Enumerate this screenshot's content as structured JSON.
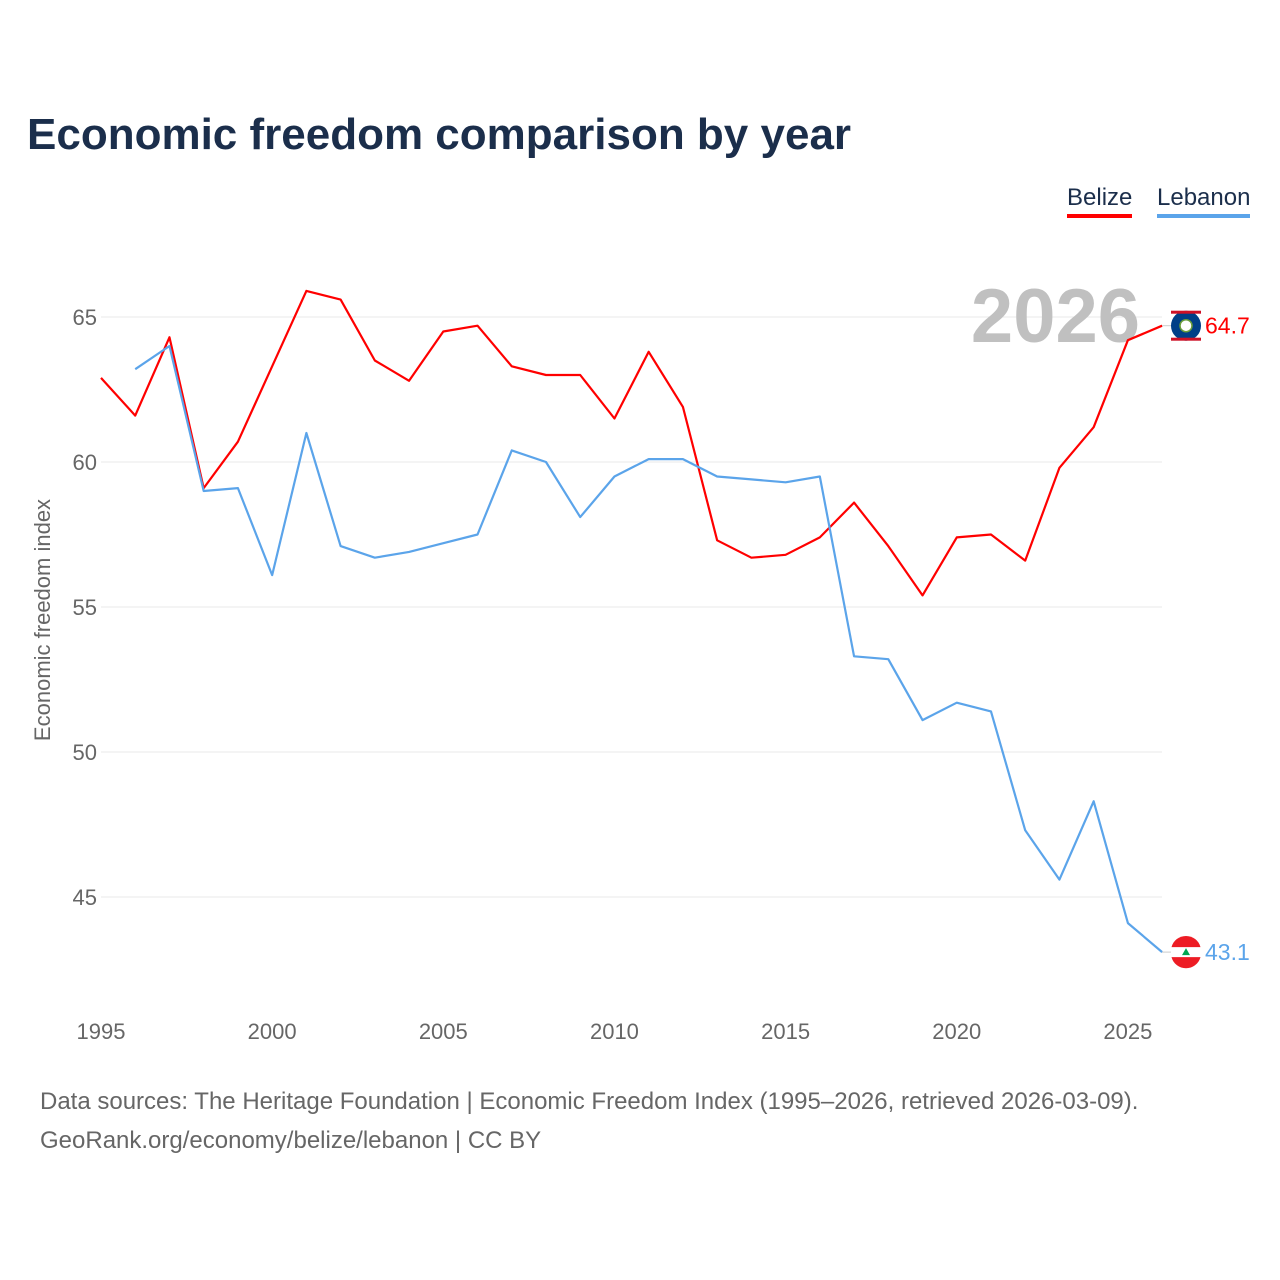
{
  "title": "Economic freedom comparison by year",
  "legend": {
    "belize": "Belize",
    "lebanon": "Lebanon"
  },
  "footer": {
    "line1": "Data sources: The Heritage Foundation | Economic Freedom Index (1995–2026, retrieved 2026-03-09).",
    "line2": "GeoRank.org/economy/belize/lebanon | CC BY"
  },
  "chart_data": {
    "type": "line",
    "title": "Economic freedom comparison by year",
    "xlabel": "",
    "ylabel": "Economic freedom index",
    "xlim": [
      1995,
      2026
    ],
    "ylim": [
      41.5,
      67.5
    ],
    "xticks": [
      1995,
      2000,
      2005,
      2010,
      2015,
      2020,
      2025
    ],
    "yticks": [
      45,
      50,
      55,
      60,
      65
    ],
    "grid": true,
    "legend_position": "top-right",
    "year_annotation": "2026",
    "series": [
      {
        "name": "Belize",
        "color": "#ff0000",
        "end_label": "64.7",
        "x": [
          1995,
          1996,
          1997,
          1998,
          1999,
          2000,
          2001,
          2002,
          2003,
          2004,
          2005,
          2006,
          2007,
          2008,
          2009,
          2010,
          2011,
          2012,
          2013,
          2014,
          2015,
          2016,
          2017,
          2018,
          2019,
          2020,
          2021,
          2022,
          2023,
          2024,
          2025,
          2026
        ],
        "values": [
          62.9,
          61.6,
          64.3,
          59.1,
          60.7,
          63.3,
          65.9,
          65.6,
          63.5,
          62.8,
          64.5,
          64.7,
          63.3,
          63.0,
          63.0,
          61.5,
          63.8,
          61.9,
          57.3,
          56.7,
          56.8,
          57.4,
          58.6,
          57.1,
          55.4,
          57.4,
          57.5,
          56.6,
          59.8,
          61.2,
          64.2,
          64.7
        ]
      },
      {
        "name": "Lebanon",
        "color": "#5ba4ea",
        "end_label": "43.1",
        "x": [
          1996,
          1997,
          1998,
          1999,
          2000,
          2001,
          2002,
          2003,
          2004,
          2005,
          2006,
          2007,
          2008,
          2009,
          2010,
          2011,
          2012,
          2013,
          2014,
          2015,
          2016,
          2017,
          2018,
          2019,
          2020,
          2021,
          2022,
          2023,
          2024,
          2025,
          2026
        ],
        "values": [
          63.2,
          64.0,
          59.0,
          59.1,
          56.1,
          61.0,
          57.1,
          56.7,
          56.9,
          57.2,
          57.5,
          60.4,
          60.0,
          58.1,
          59.5,
          60.1,
          60.1,
          59.5,
          59.4,
          59.3,
          59.5,
          53.3,
          53.2,
          51.1,
          51.7,
          51.4,
          47.3,
          45.6,
          48.3,
          44.1,
          43.1
        ]
      }
    ]
  }
}
